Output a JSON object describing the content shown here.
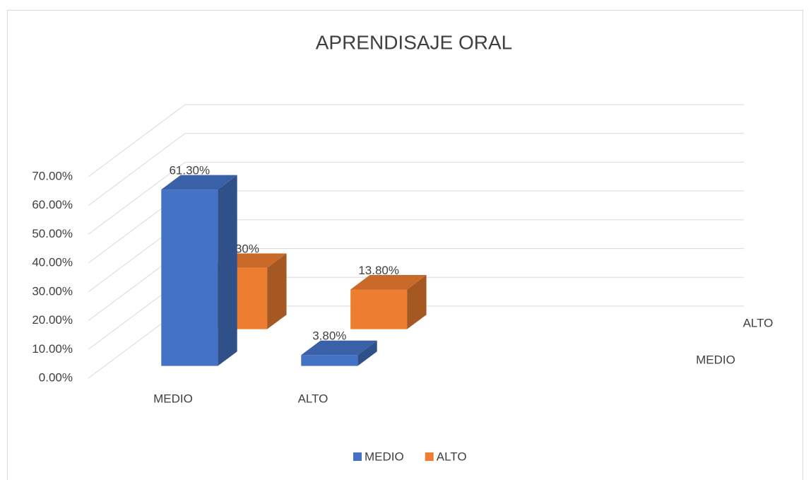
{
  "chart_data": {
    "type": "bar3d",
    "title": "APRENDISAJE ORAL",
    "categories": [
      "MEDIO",
      "ALTO"
    ],
    "series": [
      {
        "name": "MEDIO",
        "color": "#4472c4",
        "values": [
          61.3,
          3.8
        ],
        "value_labels": [
          "61.30%",
          "3.80%"
        ]
      },
      {
        "name": "ALTO",
        "color": "#ed7d31",
        "values": [
          21.3,
          13.8
        ],
        "value_labels": [
          "21.30%",
          "13.80%"
        ]
      }
    ],
    "ylim": [
      0,
      70
    ],
    "yticks": [
      {
        "value": 0,
        "label": "0.00%"
      },
      {
        "value": 10,
        "label": "10.00%"
      },
      {
        "value": 20,
        "label": "20.00%"
      },
      {
        "value": 30,
        "label": "30.00%"
      },
      {
        "value": 40,
        "label": "40.00%"
      },
      {
        "value": 50,
        "label": "50.00%"
      },
      {
        "value": 60,
        "label": "60.00%"
      },
      {
        "value": 70,
        "label": "70.00%"
      }
    ],
    "grid": true,
    "legend": "bottom"
  }
}
